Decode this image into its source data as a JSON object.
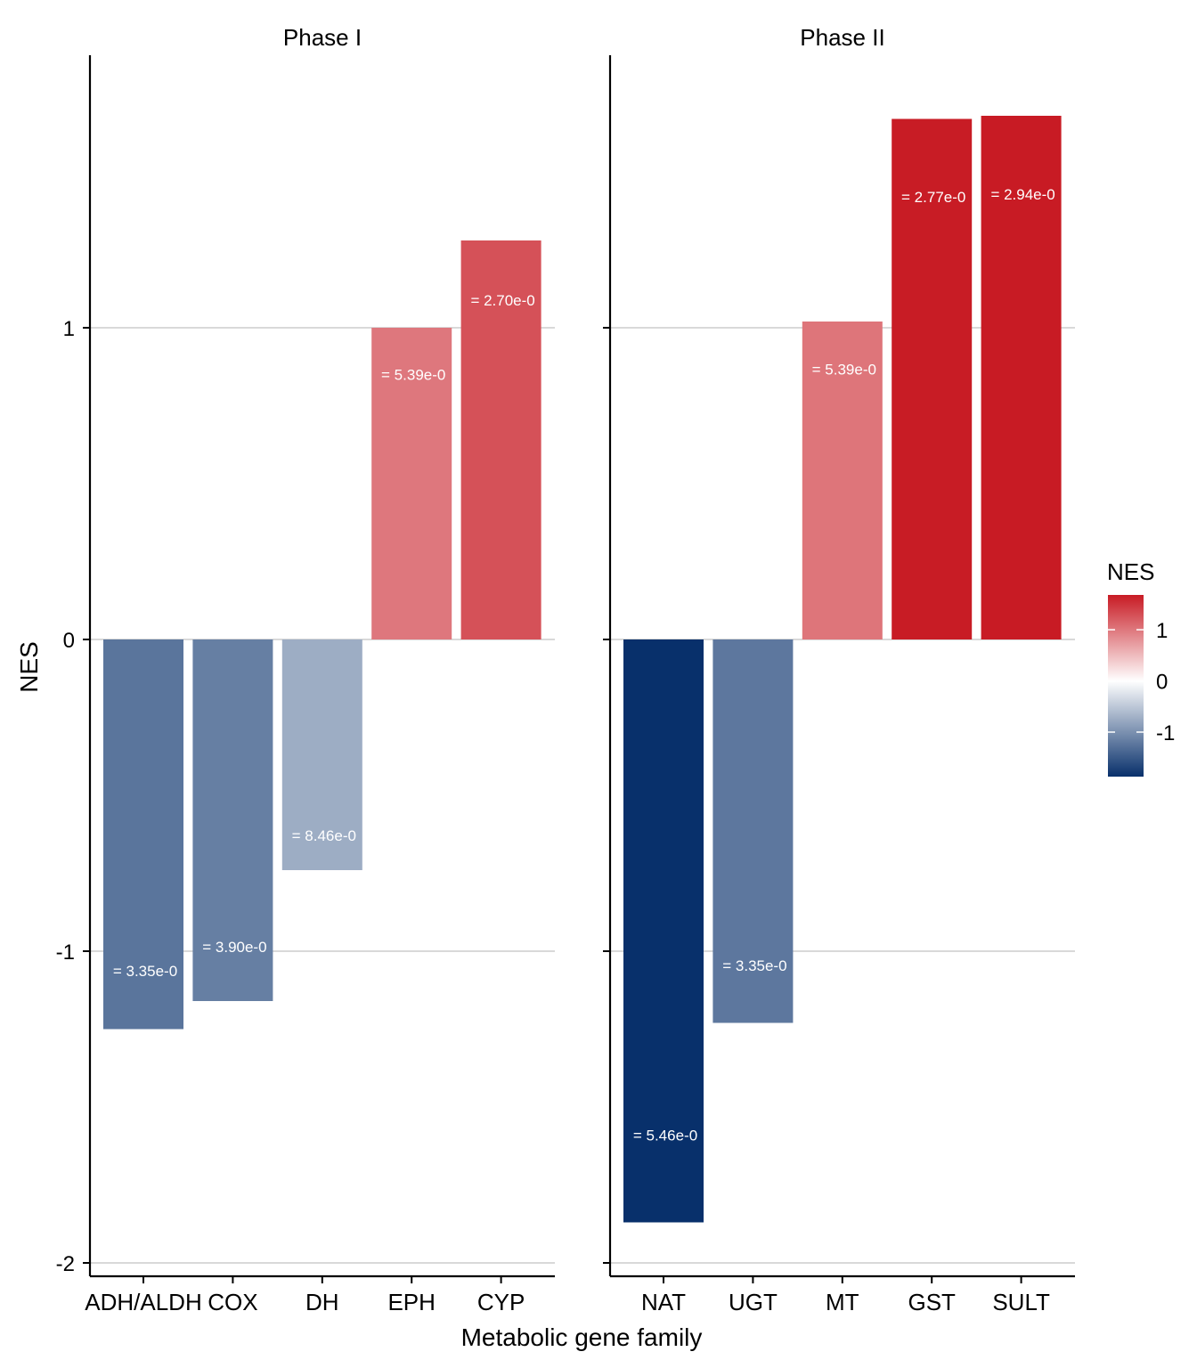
{
  "chart_data": {
    "type": "bar",
    "xlabel": "Metabolic gene family",
    "ylabel": "NES",
    "ylim": [
      -2.0,
      1.9
    ],
    "yticks": [
      -2,
      -1,
      0,
      1
    ],
    "ytick_labels": [
      "-2",
      "-1",
      "0",
      "1"
    ],
    "grid": "horizontal major",
    "panels": [
      {
        "name": "Phase I",
        "categories": [
          "ADH/ALDH",
          "COX",
          "DH",
          "EPH",
          "CYP"
        ],
        "values": [
          -1.25,
          -1.16,
          -0.74,
          1.0,
          1.28
        ],
        "labels": [
          "= 3.35e-0",
          "= 3.90e-0",
          "= 8.46e-0",
          "= 5.39e-0",
          "= 2.70e-0"
        ]
      },
      {
        "name": "Phase II",
        "categories": [
          "NAT",
          "UGT",
          "MT",
          "GST",
          "SULT"
        ],
        "values": [
          -1.87,
          -1.23,
          1.02,
          1.67,
          1.68
        ],
        "labels": [
          "= 5.46e-0",
          "= 3.35e-0",
          "= 5.39e-0",
          "= 2.77e-0",
          "= 2.94e-0"
        ]
      }
    ],
    "legend": {
      "title": "NES",
      "ticks": [
        1,
        0,
        -1
      ],
      "tick_labels": [
        "1",
        "0",
        "-1"
      ],
      "range": [
        -1.87,
        1.68
      ],
      "position": "right",
      "colors": {
        "low": "#08306b",
        "mid": "#ffffff",
        "high": "#c81b24"
      }
    }
  }
}
